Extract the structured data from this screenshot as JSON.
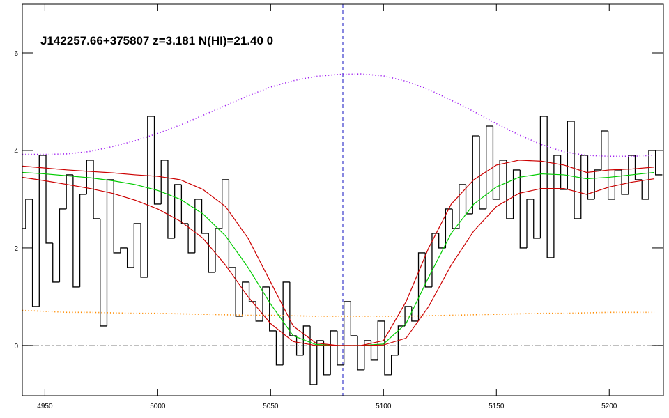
{
  "chart_data": {
    "type": "spectrum",
    "title": "J142257.66+375807 z=3.181 N(HI)=21.40 0",
    "xlim": [
      4940,
      5224
    ],
    "ylim": [
      -1.03,
      7.0
    ],
    "xticks": [
      4950,
      5000,
      5050,
      5100,
      5150,
      5200
    ],
    "yticks": [
      0,
      2,
      4,
      6
    ],
    "reference_line": 0,
    "marker_line": 5082,
    "series": [
      {
        "style": "steps",
        "color": "#000000",
        "x": [
          4940,
          4943,
          4946,
          4949,
          4952,
          4955,
          4958,
          4961,
          4964,
          4967,
          4970,
          4973,
          4976,
          4979,
          4982,
          4985,
          4988,
          4991,
          4994,
          4997,
          5000,
          5003,
          5006,
          5009,
          5012,
          5015,
          5018,
          5021,
          5024,
          5027,
          5030,
          5033,
          5036,
          5039,
          5042,
          5045,
          5048,
          5051,
          5054,
          5057,
          5060,
          5063,
          5066,
          5069,
          5072,
          5075,
          5078,
          5081,
          5084,
          5087,
          5090,
          5093,
          5096,
          5099,
          5102,
          5105,
          5108,
          5111,
          5114,
          5117,
          5120,
          5123,
          5126,
          5129,
          5132,
          5135,
          5138,
          5141,
          5144,
          5147,
          5150,
          5153,
          5156,
          5159,
          5162,
          5165,
          5168,
          5171,
          5174,
          5177,
          5180,
          5183,
          5186,
          5189,
          5192,
          5195,
          5198,
          5201,
          5204,
          5207,
          5210,
          5213,
          5216,
          5219,
          5222
        ],
        "values": [
          2.4,
          3.0,
          0.8,
          3.9,
          2.1,
          1.3,
          2.8,
          3.5,
          1.2,
          3.1,
          3.8,
          2.6,
          0.4,
          3.4,
          1.9,
          2.0,
          1.6,
          2.5,
          1.4,
          4.7,
          2.9,
          3.8,
          2.2,
          3.3,
          2.5,
          1.9,
          3.0,
          2.3,
          1.5,
          2.4,
          3.4,
          1.6,
          0.6,
          1.3,
          0.9,
          0.5,
          1.2,
          0.3,
          -0.4,
          1.3,
          0.2,
          -0.2,
          0.4,
          -0.8,
          0.1,
          -0.6,
          0.3,
          -0.4,
          0.9,
          0.2,
          -0.5,
          0.1,
          -0.3,
          0.5,
          -0.6,
          -0.2,
          0.4,
          0.8,
          0.5,
          1.9,
          1.2,
          2.3,
          2.0,
          2.8,
          2.4,
          3.3,
          2.7,
          4.3,
          2.8,
          4.5,
          3.0,
          3.8,
          2.6,
          3.6,
          2.0,
          3.0,
          2.2,
          4.7,
          1.8,
          3.9,
          3.2,
          4.6,
          2.6,
          3.9,
          3.0,
          3.6,
          4.4,
          3.0,
          3.6,
          3.1,
          3.9,
          3.4,
          3.0,
          4.0,
          3.5
        ]
      },
      {
        "style": "dotted",
        "color": "#a020f0",
        "x": [
          4940,
          4950,
          4960,
          4970,
          4980,
          4990,
          5000,
          5010,
          5020,
          5030,
          5040,
          5050,
          5060,
          5070,
          5080,
          5090,
          5100,
          5110,
          5120,
          5130,
          5140,
          5150,
          5160,
          5170,
          5180,
          5190,
          5200,
          5210,
          5220
        ],
        "values": [
          3.92,
          3.92,
          3.93,
          3.98,
          4.08,
          4.2,
          4.35,
          4.52,
          4.72,
          4.92,
          5.12,
          5.3,
          5.43,
          5.52,
          5.56,
          5.57,
          5.53,
          5.42,
          5.25,
          5.03,
          4.8,
          4.55,
          4.32,
          4.12,
          3.97,
          3.9,
          3.88,
          3.88,
          3.9
        ]
      },
      {
        "style": "dotted",
        "color": "#ff8c00",
        "x": [
          4940,
          4950,
          4960,
          4970,
          4980,
          4990,
          5000,
          5010,
          5020,
          5030,
          5040,
          5050,
          5060,
          5070,
          5080,
          5090,
          5100,
          5110,
          5120,
          5130,
          5140,
          5150,
          5160,
          5170,
          5180,
          5190,
          5200,
          5210,
          5220
        ],
        "values": [
          0.72,
          0.7,
          0.68,
          0.68,
          0.67,
          0.66,
          0.66,
          0.65,
          0.64,
          0.63,
          0.62,
          0.62,
          0.61,
          0.6,
          0.6,
          0.6,
          0.6,
          0.6,
          0.61,
          0.62,
          0.63,
          0.64,
          0.65,
          0.66,
          0.66,
          0.67,
          0.68,
          0.68,
          0.68
        ]
      },
      {
        "style": "line",
        "color": "#00cc00",
        "x": [
          4940,
          4950,
          4960,
          4970,
          4980,
          4990,
          5000,
          5010,
          5020,
          5030,
          5040,
          5050,
          5060,
          5070,
          5080,
          5090,
          5100,
          5110,
          5120,
          5130,
          5140,
          5150,
          5160,
          5170,
          5180,
          5190,
          5200,
          5210,
          5220
        ],
        "values": [
          3.55,
          3.52,
          3.48,
          3.44,
          3.38,
          3.3,
          3.18,
          3.0,
          2.7,
          2.25,
          1.6,
          0.85,
          0.2,
          0.02,
          0,
          0,
          0.03,
          0.45,
          1.4,
          2.3,
          2.9,
          3.25,
          3.45,
          3.52,
          3.5,
          3.42,
          3.45,
          3.5,
          3.55
        ]
      },
      {
        "style": "line",
        "color": "#cc0000",
        "x": [
          4940,
          4950,
          4960,
          4970,
          4980,
          4990,
          5000,
          5010,
          5020,
          5030,
          5040,
          5050,
          5060,
          5070,
          5080,
          5090,
          5100,
          5110,
          5120,
          5130,
          5140,
          5150,
          5160,
          5170,
          5180,
          5190,
          5200,
          5210,
          5220
        ],
        "values": [
          3.68,
          3.64,
          3.6,
          3.57,
          3.54,
          3.5,
          3.47,
          3.4,
          3.2,
          2.85,
          2.2,
          1.3,
          0.4,
          0.05,
          0,
          0,
          0.1,
          0.9,
          2.0,
          2.9,
          3.4,
          3.7,
          3.8,
          3.78,
          3.7,
          3.55,
          3.6,
          3.62,
          3.66
        ]
      },
      {
        "style": "line",
        "color": "#cc0000",
        "x": [
          4940,
          4950,
          4960,
          4970,
          4980,
          4990,
          5000,
          5010,
          5020,
          5030,
          5040,
          5050,
          5060,
          5070,
          5080,
          5090,
          5100,
          5110,
          5120,
          5130,
          5140,
          5150,
          5160,
          5170,
          5180,
          5190,
          5200,
          5210,
          5220
        ],
        "values": [
          3.45,
          3.38,
          3.3,
          3.22,
          3.12,
          2.98,
          2.8,
          2.55,
          2.2,
          1.65,
          1.0,
          0.45,
          0.08,
          0.0,
          0,
          0,
          0.01,
          0.15,
          0.8,
          1.65,
          2.35,
          2.85,
          3.12,
          3.22,
          3.22,
          3.1,
          3.25,
          3.35,
          3.42
        ]
      }
    ]
  }
}
